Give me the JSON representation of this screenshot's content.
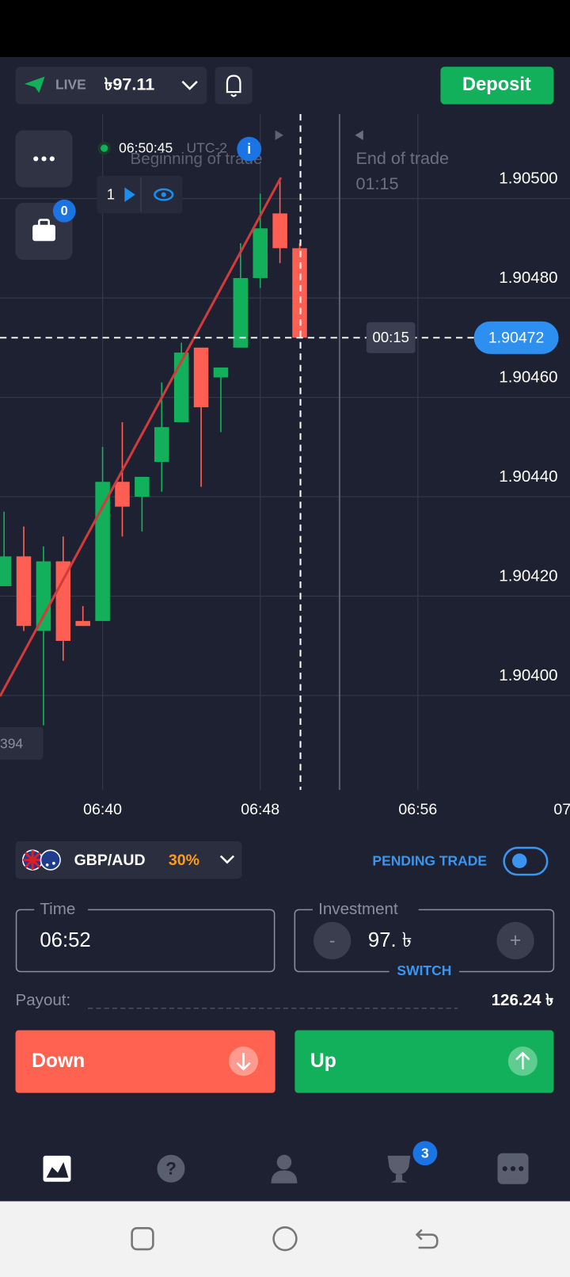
{
  "status_bar": {
    "account": "LIVE",
    "balance": "৳97.11",
    "deposit": "Deposit"
  },
  "chart_data": {
    "type": "candlestick",
    "clock": "06:50:45",
    "timezone": "UTC-2",
    "beginning_label": "Beginning of trade",
    "end_label": "End of trade",
    "end_countdown": "01:15",
    "countdown": "00:15",
    "trade_count": 1,
    "portfolio_badge": 0,
    "partial_price_label": "394",
    "up_color": "#12b05a",
    "down_color": "#ff5f52",
    "open": [
      1.90422,
      1.90428,
      1.90413,
      1.90427,
      1.90415,
      1.90415,
      1.90443,
      1.9044,
      1.90447,
      1.90455,
      1.9047,
      1.90464,
      1.9047,
      1.90484,
      1.90497,
      1.9049
    ],
    "high": [
      1.90437,
      1.90434,
      1.9043,
      1.90432,
      1.90418,
      1.9045,
      1.90455,
      1.90444,
      1.90463,
      1.90471,
      1.9047,
      1.90466,
      1.90491,
      1.90501,
      1.90504,
      1.90491
    ],
    "low": [
      1.90422,
      1.90413,
      1.90394,
      1.90407,
      1.90414,
      1.90415,
      1.90432,
      1.90433,
      1.90441,
      1.90455,
      1.90442,
      1.90453,
      1.9047,
      1.90482,
      1.90487,
      1.90472
    ],
    "close": [
      1.90428,
      1.90414,
      1.90427,
      1.90411,
      1.90414,
      1.90443,
      1.90438,
      1.90444,
      1.90454,
      1.90469,
      1.90458,
      1.90466,
      1.90484,
      1.90494,
      1.9049,
      1.90472
    ],
    "current_price": 1.90472,
    "ylim": [
      1.90381,
      1.90517
    ],
    "yticks": [
      {
        "value": 1.905,
        "label": "1.90500"
      },
      {
        "value": 1.9048,
        "label": "1.90480"
      },
      {
        "value": 1.9046,
        "label": "1.90460"
      },
      {
        "value": 1.9044,
        "label": "1.90440"
      },
      {
        "value": 1.9042,
        "label": "1.90420"
      },
      {
        "value": 1.904,
        "label": "1.90400"
      }
    ],
    "xticks": [
      "06:40",
      "06:48",
      "06:56",
      "07"
    ],
    "grid": true
  },
  "trade_panel": {
    "pair": "GBP/AUD",
    "payout_percent": "30%",
    "pending_trade": "PENDING TRADE",
    "time_label": "Time",
    "time_value": "06:52",
    "investment_label": "Investment",
    "investment_value": "97. ৳",
    "minus": "-",
    "plus": "+",
    "switch": "SWITCH",
    "payout_label": "Payout:",
    "payout_value": "126.24 ৳",
    "down": "Down",
    "up": "Up"
  },
  "nav": {
    "tournaments_badge": 3
  }
}
